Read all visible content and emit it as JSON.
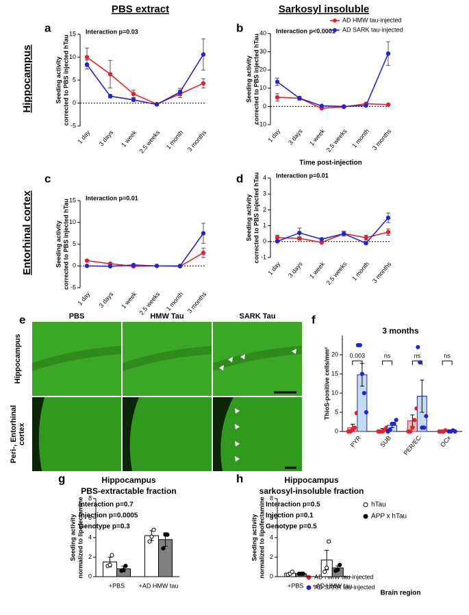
{
  "headers": {
    "col1": "PBS extract",
    "col2": "Sarkosyl insoluble",
    "row1": "Hippocampus",
    "row2": "Entorhinal cortex"
  },
  "image_panel": {
    "panel": "e",
    "columns": [
      "PBS",
      "HMW Tau",
      "SARK Tau"
    ],
    "rows": [
      [
        "Hippocampus"
      ],
      [
        "Peri-, Entorhinal",
        "cortex"
      ]
    ]
  },
  "chart_data": [
    {
      "type": "line",
      "panel": "a",
      "annotation": "Interaction p=0.03",
      "ylabel": [
        "Seeding activity",
        "corrected to PBS injected hTau"
      ],
      "categories": [
        "1 day",
        "3 days",
        "1 week",
        "2.5 weeks",
        "1 month",
        "3 months"
      ],
      "ylim": [
        -5,
        15
      ],
      "yticks": [
        -5,
        0,
        5,
        10,
        15
      ],
      "zero_line": true,
      "series": [
        {
          "color": "#e8202a",
          "values": [
            10,
            6.3,
            2,
            -0.2,
            2,
            4.3
          ],
          "errors": [
            2,
            3,
            0.8,
            0.2,
            0.8,
            1
          ]
        },
        {
          "color": "#2323d6",
          "values": [
            8.4,
            1.5,
            0.7,
            -0.3,
            2.4,
            10.6
          ],
          "errors": [
            1,
            0.4,
            0.3,
            0.2,
            0.8,
            3.4
          ]
        }
      ]
    },
    {
      "type": "line",
      "panel": "b",
      "annotation": "Interaction p<0.0001",
      "ylabel": [
        "Seeding activity",
        "corrected to PBS injected hTau"
      ],
      "xlabel": "Time post-injection",
      "categories": [
        "1 day",
        "3 days",
        "1 week",
        "2.5 weeks",
        "1 month",
        "3 months"
      ],
      "ylim": [
        -10,
        40
      ],
      "yticks": [
        -10,
        0,
        10,
        20,
        30,
        40
      ],
      "zero_line": true,
      "legend": "upper right",
      "series": [
        {
          "name": "AD HMW tau-injected",
          "color": "#e8202a",
          "values": [
            5,
            4.5,
            -1,
            -0.3,
            1.5,
            1
          ],
          "errors": [
            2,
            1,
            0.5,
            0.5,
            0.5,
            0.5
          ]
        },
        {
          "name": "AD SARK tau-injected",
          "color": "#2323d6",
          "values": [
            13.5,
            4.5,
            0.3,
            0,
            0.5,
            29
          ],
          "errors": [
            2,
            1,
            0.3,
            0.3,
            0.5,
            6.5
          ]
        }
      ]
    },
    {
      "type": "line",
      "panel": "c",
      "annotation": "Interaction p=0.01",
      "ylabel": [
        "Seeding activity",
        "corrected to PBS injected hTau"
      ],
      "categories": [
        "1 day",
        "3 days",
        "1 week",
        "2.5 weeks",
        "1 month",
        "3 months"
      ],
      "ylim": [
        -5,
        15
      ],
      "yticks": [
        -5,
        0,
        5,
        10,
        15
      ],
      "zero_line": true,
      "series": [
        {
          "color": "#e8202a",
          "values": [
            1.2,
            0.5,
            -0.1,
            0,
            -0.1,
            3
          ],
          "errors": [
            0.2,
            0.2,
            0.2,
            0.1,
            0.1,
            1.1
          ]
        },
        {
          "color": "#2323d6",
          "values": [
            0,
            -0.1,
            0.2,
            0,
            0,
            7.5
          ],
          "errors": [
            0.1,
            0.1,
            0.1,
            0.1,
            0.1,
            2.3
          ]
        }
      ]
    },
    {
      "type": "line",
      "panel": "d",
      "annotation": "Interaction p=0.01",
      "ylabel": [
        "Seeding activity",
        "corrected to PBS injected hTau"
      ],
      "categories": [
        "1 day",
        "3 days",
        "1 week",
        "2.5 weeks",
        "1 month",
        "3 months"
      ],
      "ylim": [
        -1,
        4
      ],
      "yticks": [
        -1,
        0,
        1,
        2,
        3,
        4
      ],
      "zero_line": true,
      "series": [
        {
          "color": "#e8202a",
          "values": [
            0.25,
            0.2,
            -0.05,
            0.5,
            0.25,
            0.6
          ],
          "errors": [
            0.15,
            0.1,
            0.05,
            0.15,
            0.15,
            0.2
          ]
        },
        {
          "color": "#2323d6",
          "values": [
            0.02,
            0.55,
            0.15,
            0.5,
            -0.1,
            1.5
          ],
          "errors": [
            0.05,
            0.3,
            0.05,
            0.15,
            0.05,
            0.3
          ]
        }
      ]
    },
    {
      "type": "bar",
      "panel": "f",
      "title": "3 months",
      "ylabel": [
        "ThioS-positive cells/mm²"
      ],
      "xlabel": "Brain region",
      "categories": [
        "PYR",
        "SUB",
        "PER/EC",
        "OCx"
      ],
      "ylim": [
        0,
        25
      ],
      "yticks": [
        0,
        5,
        10,
        15,
        20
      ],
      "significance": [
        "0.003",
        "ns",
        "ns",
        "ns"
      ],
      "legend": "lower left",
      "series": [
        {
          "name": "AD HMW tau-injected",
          "bar_color": "#f3b9b9",
          "point_color": "#e8202a",
          "values": [
            1,
            0.4,
            2.8,
            0.1
          ],
          "errors": [
            0.9,
            0.4,
            1.5,
            0.1
          ],
          "points": [
            [
              0,
              0,
              0.5,
              1,
              4.8
            ],
            [
              0,
              0,
              0,
              0.5,
              1
            ],
            [
              0,
              0,
              1,
              3,
              6
            ],
            [
              0,
              0,
              0,
              0.3
            ]
          ]
        },
        {
          "name": "AD SARK tau-injected",
          "bar_color": "#c3dbf3",
          "point_color": "#2323d6",
          "values": [
            14.8,
            1.6,
            9.2,
            0.2
          ],
          "errors": [
            3,
            0.6,
            4.2,
            0.1
          ],
          "points": [
            [
              22.5,
              22.5,
              15,
              10,
              5
            ],
            [
              0,
              0.5,
              2,
              2,
              3
            ],
            [
              22,
              18,
              1,
              1,
              4
            ],
            [
              0,
              0,
              0.3,
              0
            ]
          ]
        }
      ]
    },
    {
      "type": "bar",
      "panel": "g",
      "title": "Hippocampus",
      "subtitle": "PBS-extractable fraction",
      "annotations": [
        "Interaction p=0.7",
        "Injection p=0.0005",
        "Genotype p=0.3"
      ],
      "ylabel": [
        "Seeding activity",
        "normalized to lipofectamine"
      ],
      "categories": [
        "+PBS",
        "+AD HMW tau"
      ],
      "ylim": [
        0,
        8
      ],
      "yticks": [
        0,
        2,
        4,
        6,
        8
      ],
      "edge_color": "#000000",
      "series": [
        {
          "bar_color": "#ffffff",
          "point_color": "#ffffff",
          "values": [
            1.5,
            4.2
          ],
          "errors": [
            0.5,
            0.5
          ],
          "points": [
            [
              1.1,
              1.2,
              2.2
            ],
            [
              3.6,
              4.1,
              4.8
            ]
          ]
        },
        {
          "bar_color": "#808080",
          "point_color": "#000000",
          "values": [
            0.8,
            3.8
          ],
          "errors": [
            0.3,
            0.7
          ],
          "points": [
            [
              0.6,
              0.7,
              1.1
            ],
            [
              2.9,
              4.3,
              4.3
            ]
          ]
        }
      ]
    },
    {
      "type": "bar",
      "panel": "h",
      "title": "Hippocampus",
      "subtitle": "sarkosyl-insoluble fraction",
      "annotations": [
        "Interaction p=0.5",
        "Injection p=0.1",
        "Genotype p=0.5"
      ],
      "ylabel": [
        "Seeding activity",
        "normalized to lipofectamine"
      ],
      "categories": [
        "+PBS",
        "+AD HMW tau"
      ],
      "ylim": [
        0,
        8
      ],
      "yticks": [
        0,
        2,
        4,
        6,
        8
      ],
      "edge_color": "#000000",
      "legend": "upper right",
      "series": [
        {
          "name": "hTau",
          "bar_color": "#ffffff",
          "point_color": "#ffffff",
          "values": [
            0.35,
            1.7
          ],
          "errors": [
            0.1,
            1
          ],
          "points": [
            [
              0.2,
              0.3,
              0.5
            ],
            [
              0.5,
              0.9,
              3.6
            ]
          ]
        },
        {
          "name": "APP x hTau",
          "bar_color": "#808080",
          "point_color": "#000000",
          "values": [
            0.3,
            0.9
          ],
          "errors": [
            0.05,
            0.2
          ],
          "points": [
            [
              0.3,
              0.3,
              0.3
            ],
            [
              0.6,
              0.7,
              1.2
            ]
          ]
        }
      ]
    }
  ]
}
